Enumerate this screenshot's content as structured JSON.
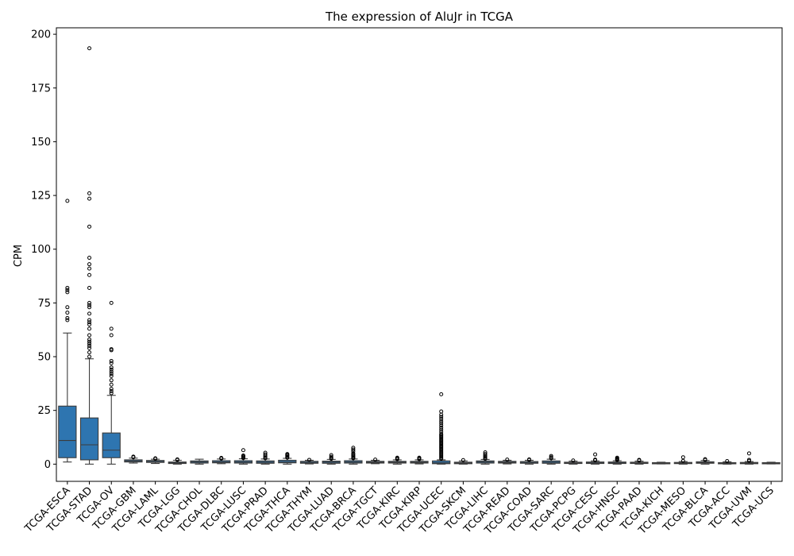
{
  "chart_data": {
    "type": "box",
    "title": "The expression of AluJr in TCGA",
    "xlabel": "",
    "ylabel": "CPM",
    "ylim": [
      -8,
      203
    ],
    "yticks": [
      0,
      25,
      50,
      75,
      100,
      125,
      150,
      175,
      200
    ],
    "grid": false,
    "color": "#2e75b0",
    "categories": [
      "TCGA-ESCA",
      "TCGA-STAD",
      "TCGA-OV",
      "TCGA-GBM",
      "TCGA-LAML",
      "TCGA-LGG",
      "TCGA-CHOL",
      "TCGA-DLBC",
      "TCGA-LUSC",
      "TCGA-PRAD",
      "TCGA-THCA",
      "TCGA-THYM",
      "TCGA-LUAD",
      "TCGA-BRCA",
      "TCGA-TGCT",
      "TCGA-KIRC",
      "TCGA-KIRP",
      "TCGA-UCEC",
      "TCGA-SKCM",
      "TCGA-LIHC",
      "TCGA-READ",
      "TCGA-COAD",
      "TCGA-SARC",
      "TCGA-PCPG",
      "TCGA-CESC",
      "TCGA-HNSC",
      "TCGA-PAAD",
      "TCGA-KICH",
      "TCGA-MESO",
      "TCGA-BLCA",
      "TCGA-ACC",
      "TCGA-UVM",
      "TCGA-UCS"
    ],
    "boxes": [
      {
        "label": "TCGA-ESCA",
        "whislo": 1,
        "q1": 3,
        "med": 11,
        "q3": 27,
        "whishi": 61,
        "fliers": [
          67,
          68,
          70.5,
          73,
          80,
          81,
          82,
          122.5
        ]
      },
      {
        "label": "TCGA-STAD",
        "whislo": 0,
        "q1": 2,
        "med": 9,
        "q3": 21.5,
        "whishi": 49,
        "fliers": [
          50,
          52,
          54,
          55,
          56,
          57,
          58,
          60,
          63,
          65,
          66,
          67,
          70,
          73,
          74,
          75,
          82,
          88,
          91,
          93,
          96,
          110.5,
          123.5,
          126,
          193.5
        ]
      },
      {
        "label": "TCGA-OV",
        "whislo": 0,
        "q1": 3,
        "med": 6.5,
        "q3": 14.5,
        "whishi": 32,
        "fliers": [
          33,
          34,
          35,
          37,
          39,
          41,
          42,
          43,
          44,
          45,
          47,
          48,
          53,
          53.5,
          60,
          63,
          75
        ]
      },
      {
        "label": "TCGA-GBM",
        "whislo": 0.5,
        "q1": 1,
        "med": 1.5,
        "q3": 2,
        "whishi": 2.8,
        "fliers": [
          3.2,
          3.5
        ]
      },
      {
        "label": "TCGA-LAML",
        "whislo": 0.3,
        "q1": 0.8,
        "med": 1.2,
        "q3": 1.7,
        "whishi": 2.3,
        "fliers": [
          2.5,
          2.7
        ]
      },
      {
        "label": "TCGA-LGG",
        "whislo": 0,
        "q1": 0.3,
        "med": 0.6,
        "q3": 1,
        "whishi": 1.8,
        "fliers": [
          2,
          2.2
        ]
      },
      {
        "label": "TCGA-CHOL",
        "whislo": 0,
        "q1": 0.5,
        "med": 1,
        "q3": 1.5,
        "whishi": 2.3,
        "fliers": []
      },
      {
        "label": "TCGA-DLBC",
        "whislo": 0.2,
        "q1": 0.6,
        "med": 1,
        "q3": 1.6,
        "whishi": 2.4,
        "fliers": [
          2.6,
          2.9
        ]
      },
      {
        "label": "TCGA-LUSC",
        "whislo": 0,
        "q1": 0.5,
        "med": 1,
        "q3": 1.6,
        "whishi": 2.5,
        "fliers": [
          2.8,
          3.2,
          3.6,
          4,
          6.5
        ]
      },
      {
        "label": "TCGA-PRAD",
        "whislo": 0,
        "q1": 0.4,
        "med": 0.9,
        "q3": 1.5,
        "whishi": 2.4,
        "fliers": [
          2.7,
          3.2,
          3.8,
          4.5,
          5.3
        ]
      },
      {
        "label": "TCGA-THCA",
        "whislo": 0,
        "q1": 0.6,
        "med": 1.1,
        "q3": 1.8,
        "whishi": 2.7,
        "fliers": [
          3,
          3.4,
          3.9,
          4.3,
          4.7
        ]
      },
      {
        "label": "TCGA-THYM",
        "whislo": 0.1,
        "q1": 0.4,
        "med": 0.8,
        "q3": 1.3,
        "whishi": 1.8,
        "fliers": [
          2
        ]
      },
      {
        "label": "TCGA-LUAD",
        "whislo": 0,
        "q1": 0.4,
        "med": 0.9,
        "q3": 1.4,
        "whishi": 2.2,
        "fliers": [
          2.5,
          2.9,
          3.4,
          4.2
        ]
      },
      {
        "label": "TCGA-BRCA",
        "whislo": 0,
        "q1": 0.5,
        "med": 1,
        "q3": 1.6,
        "whishi": 2.4,
        "fliers": [
          2.7,
          3,
          3.4,
          3.9,
          4.4,
          5,
          6,
          6.8,
          7.6
        ]
      },
      {
        "label": "TCGA-TGCT",
        "whislo": 0.2,
        "q1": 0.5,
        "med": 0.9,
        "q3": 1.3,
        "whishi": 1.8,
        "fliers": [
          2.1
        ]
      },
      {
        "label": "TCGA-KIRC",
        "whislo": 0,
        "q1": 0.5,
        "med": 0.9,
        "q3": 1.3,
        "whishi": 2,
        "fliers": [
          2.3,
          2.7,
          3
        ]
      },
      {
        "label": "TCGA-KIRP",
        "whislo": 0.1,
        "q1": 0.5,
        "med": 0.9,
        "q3": 1.3,
        "whishi": 2,
        "fliers": [
          2.3,
          2.7,
          3
        ]
      },
      {
        "label": "TCGA-UCEC",
        "whislo": 0,
        "q1": 0.2,
        "med": 0.6,
        "q3": 1.5,
        "whishi": 2,
        "fliers": [
          2.5,
          3,
          3.5,
          4,
          4.5,
          5,
          5.5,
          6,
          6.5,
          7,
          7.5,
          8,
          8.5,
          9,
          9.5,
          10,
          10.5,
          11,
          11.5,
          12,
          12.5,
          13,
          13.5,
          14,
          15,
          16,
          17,
          18,
          19,
          20,
          21,
          22,
          23,
          24.5,
          32.5
        ]
      },
      {
        "label": "TCGA-SKCM",
        "whislo": 0,
        "q1": 0.2,
        "med": 0.5,
        "q3": 0.9,
        "whishi": 1.5,
        "fliers": [
          1.9
        ]
      },
      {
        "label": "TCGA-LIHC",
        "whislo": 0,
        "q1": 0.5,
        "med": 1,
        "q3": 1.5,
        "whishi": 2.2,
        "fliers": [
          2.5,
          3,
          3.5,
          4,
          4.7,
          5.5
        ]
      },
      {
        "label": "TCGA-READ",
        "whislo": 0.1,
        "q1": 0.5,
        "med": 0.9,
        "q3": 1.3,
        "whishi": 1.8,
        "fliers": [
          2.1
        ]
      },
      {
        "label": "TCGA-COAD",
        "whislo": 0,
        "q1": 0.4,
        "med": 0.8,
        "q3": 1.2,
        "whishi": 1.8,
        "fliers": [
          2,
          2.2
        ]
      },
      {
        "label": "TCGA-SARC",
        "whislo": 0,
        "q1": 0.4,
        "med": 0.9,
        "q3": 1.5,
        "whishi": 2.3,
        "fliers": [
          2.7,
          3.2,
          3.8
        ]
      },
      {
        "label": "TCGA-PCPG",
        "whislo": 0,
        "q1": 0.3,
        "med": 0.6,
        "q3": 0.9,
        "whishi": 1.4,
        "fliers": [
          1.7
        ]
      },
      {
        "label": "TCGA-CESC",
        "whislo": 0,
        "q1": 0.3,
        "med": 0.6,
        "q3": 1,
        "whishi": 1.5,
        "fliers": [
          1.8,
          2.1,
          4.5
        ]
      },
      {
        "label": "TCGA-HNSC",
        "whislo": 0,
        "q1": 0.3,
        "med": 0.6,
        "q3": 1,
        "whishi": 1.6,
        "fliers": [
          1.9,
          2.2,
          2.6,
          3
        ]
      },
      {
        "label": "TCGA-PAAD",
        "whislo": 0,
        "q1": 0.3,
        "med": 0.6,
        "q3": 0.9,
        "whishi": 1.4,
        "fliers": [
          1.7,
          2
        ]
      },
      {
        "label": "TCGA-KICH",
        "whislo": 0.1,
        "q1": 0.3,
        "med": 0.5,
        "q3": 0.7,
        "whishi": 0.9,
        "fliers": []
      },
      {
        "label": "TCGA-MESO",
        "whislo": 0,
        "q1": 0.3,
        "med": 0.5,
        "q3": 0.8,
        "whishi": 1.2,
        "fliers": [
          1.5,
          3.2
        ]
      },
      {
        "label": "TCGA-BLCA",
        "whislo": 0,
        "q1": 0.4,
        "med": 0.7,
        "q3": 1.1,
        "whishi": 1.7,
        "fliers": [
          2,
          2.3
        ]
      },
      {
        "label": "TCGA-ACC",
        "whislo": 0,
        "q1": 0.2,
        "med": 0.4,
        "q3": 0.7,
        "whishi": 1.1,
        "fliers": [
          1.4
        ]
      },
      {
        "label": "TCGA-UVM",
        "whislo": 0,
        "q1": 0.2,
        "med": 0.5,
        "q3": 0.8,
        "whishi": 1.2,
        "fliers": [
          1.5,
          2,
          5
        ]
      },
      {
        "label": "TCGA-UCS",
        "whislo": 0.1,
        "q1": 0.3,
        "med": 0.5,
        "q3": 0.7,
        "whishi": 0.9,
        "fliers": []
      }
    ]
  }
}
